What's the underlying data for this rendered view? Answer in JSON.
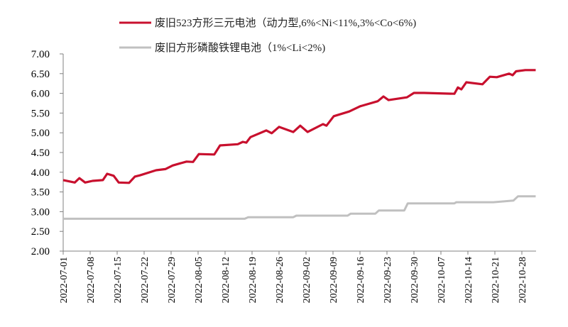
{
  "chart_data": {
    "type": "line",
    "title": "",
    "xlabel": "",
    "ylabel": "",
    "ylim": [
      2.0,
      7.0
    ],
    "yticks": [
      "2.00",
      "2.50",
      "3.00",
      "3.50",
      "4.00",
      "4.50",
      "5.00",
      "5.50",
      "6.00",
      "6.50",
      "7.00"
    ],
    "xticks": [
      "2022-07-01",
      "2022-07-08",
      "2022-07-15",
      "2022-07-22",
      "2022-07-29",
      "2022-08-05",
      "2022-08-12",
      "2022-08-19",
      "2022-08-26",
      "2022-09-02",
      "2022-09-09",
      "2022-09-16",
      "2022-09-23",
      "2022-09-30",
      "2022-10-07",
      "2022-10-14",
      "2022-10-21",
      "2022-10-28"
    ],
    "x_unit": "days since 2022-07-01",
    "legend": "top",
    "series": [
      {
        "name": "废旧523方形三元电池（动力型,6%<Ni<11%,3%<Co<6%)",
        "color": "#c8102e",
        "points": [
          [
            0,
            3.8
          ],
          [
            3,
            3.74
          ],
          [
            4.2,
            3.85
          ],
          [
            5.7,
            3.74
          ],
          [
            7.6,
            3.78
          ],
          [
            10.3,
            3.8
          ],
          [
            11.4,
            3.96
          ],
          [
            13.1,
            3.91
          ],
          [
            14.4,
            3.74
          ],
          [
            17.1,
            3.73
          ],
          [
            18.6,
            3.89
          ],
          [
            19.9,
            3.92
          ],
          [
            24.1,
            4.05
          ],
          [
            26.5,
            4.08
          ],
          [
            28.4,
            4.17
          ],
          [
            32.0,
            4.27
          ],
          [
            33.7,
            4.26
          ],
          [
            35.2,
            4.46
          ],
          [
            39.2,
            4.45
          ],
          [
            40.7,
            4.68
          ],
          [
            45.3,
            4.71
          ],
          [
            46.6,
            4.77
          ],
          [
            47.5,
            4.75
          ],
          [
            48.6,
            4.89
          ],
          [
            52.7,
            5.06
          ],
          [
            54.1,
            4.99
          ],
          [
            56.0,
            5.15
          ],
          [
            59.7,
            5.02
          ],
          [
            61.5,
            5.18
          ],
          [
            63.4,
            5.02
          ],
          [
            67.4,
            5.22
          ],
          [
            68.3,
            5.18
          ],
          [
            70.2,
            5.42
          ],
          [
            74.2,
            5.54
          ],
          [
            77.0,
            5.67
          ],
          [
            81.6,
            5.8
          ],
          [
            83.1,
            5.92
          ],
          [
            84.4,
            5.83
          ],
          [
            89.2,
            5.9
          ],
          [
            91.0,
            6.01
          ],
          [
            93.6,
            6.01
          ],
          [
            101.5,
            5.99
          ],
          [
            102.4,
            6.15
          ],
          [
            103.3,
            6.1
          ],
          [
            104.6,
            6.28
          ],
          [
            108.8,
            6.23
          ],
          [
            110.7,
            6.42
          ],
          [
            112.5,
            6.41
          ],
          [
            115.7,
            6.5
          ],
          [
            116.6,
            6.46
          ],
          [
            117.5,
            6.56
          ],
          [
            119.9,
            6.59
          ],
          [
            122.6,
            6.59
          ]
        ]
      },
      {
        "name": "废旧方形磷酸铁锂电池（1%<Li<2%)",
        "color": "#c0c0c0",
        "points": [
          [
            0,
            2.82
          ],
          [
            47.1,
            2.82
          ],
          [
            48.0,
            2.86
          ],
          [
            59.7,
            2.86
          ],
          [
            60.5,
            2.9
          ],
          [
            73.8,
            2.9
          ],
          [
            74.6,
            2.95
          ],
          [
            81.0,
            2.95
          ],
          [
            81.9,
            3.03
          ],
          [
            88.5,
            3.03
          ],
          [
            89.4,
            3.21
          ],
          [
            101.5,
            3.21
          ],
          [
            102.0,
            3.24
          ],
          [
            111.6,
            3.24
          ],
          [
            116.8,
            3.28
          ],
          [
            118.0,
            3.39
          ],
          [
            122.6,
            3.39
          ]
        ]
      }
    ]
  }
}
